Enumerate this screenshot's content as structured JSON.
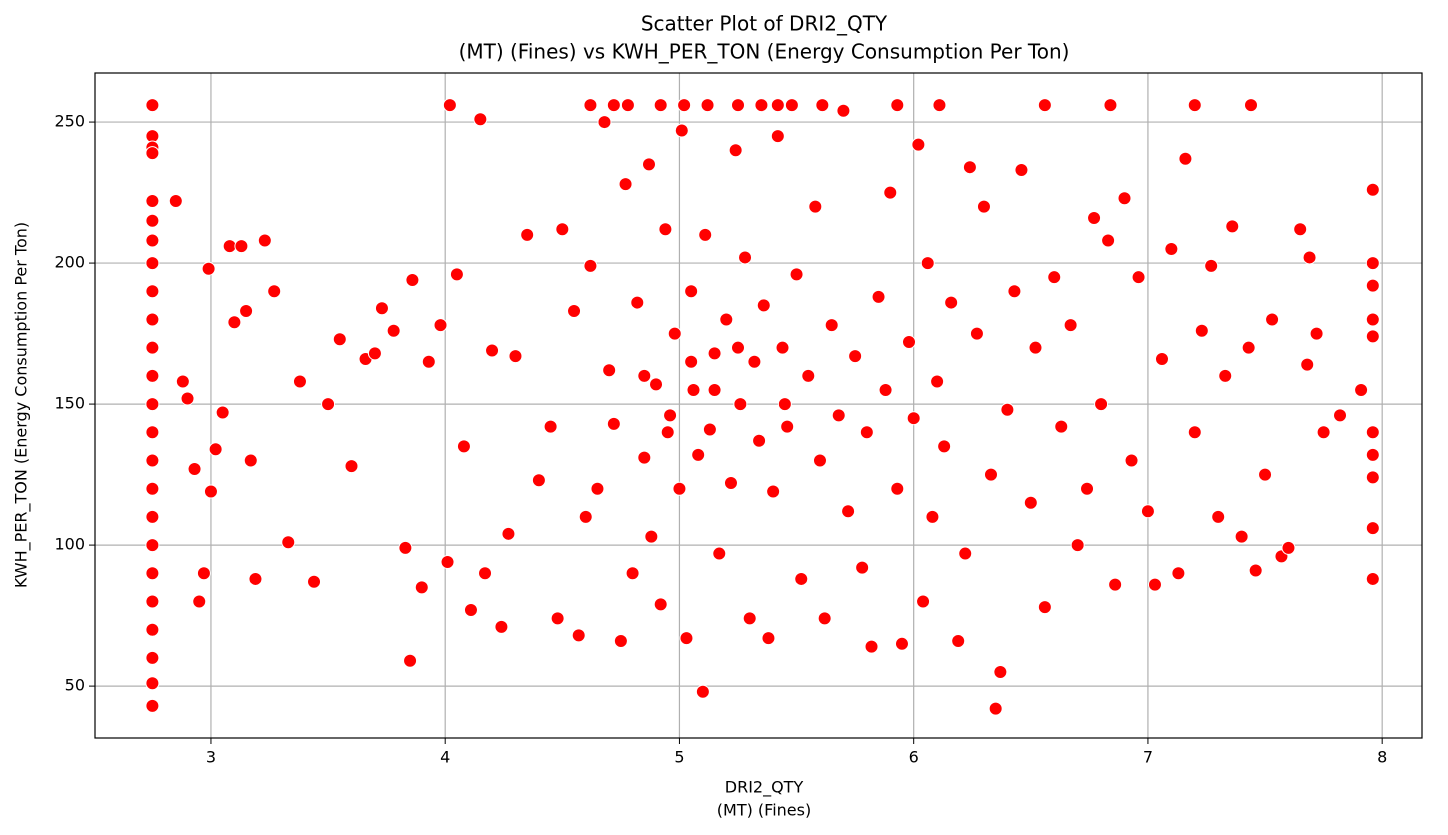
{
  "chart_data": {
    "type": "scatter",
    "title": [
      "Scatter Plot of DRI2_QTY",
      "(MT) (Fines) vs KWH_PER_TON (Energy Consumption Per Ton)"
    ],
    "xlabel": [
      "DRI2_QTY",
      "(MT) (Fines)"
    ],
    "ylabel": "KWH_PER_TON (Energy Consumption Per Ton)",
    "color": "#ff0000",
    "grid": true,
    "xlim": [
      2.505,
      8.17
    ],
    "ylim": [
      31.6,
      267.4
    ],
    "xticks": [
      3,
      4,
      5,
      6,
      7,
      8
    ],
    "yticks": [
      50,
      100,
      150,
      200,
      250
    ],
    "x": [
      2.75,
      2.75,
      2.75,
      2.75,
      2.75,
      2.75,
      2.75,
      2.75,
      2.75,
      2.75,
      2.75,
      2.75,
      2.75,
      2.75,
      2.75,
      2.75,
      2.75,
      2.75,
      2.75,
      2.75,
      2.75,
      2.75,
      2.75,
      2.75,
      7.96,
      7.96,
      7.96,
      7.96,
      7.96,
      7.96,
      7.96,
      7.96,
      7.96,
      7.96,
      4.02,
      4.62,
      4.72,
      4.78,
      4.92,
      5.02,
      5.12,
      5.25,
      5.35,
      5.42,
      5.48,
      5.61,
      5.93,
      6.11,
      6.56,
      6.84,
      7.2,
      7.44,
      2.85,
      2.88,
      2.9,
      2.93,
      2.95,
      2.97,
      2.99,
      3.0,
      3.02,
      3.05,
      3.08,
      3.1,
      3.13,
      3.15,
      3.17,
      3.19,
      3.23,
      3.27,
      3.33,
      3.38,
      3.44,
      3.5,
      3.55,
      3.6,
      3.66,
      3.7,
      3.73,
      3.78,
      3.83,
      3.85,
      3.86,
      3.9,
      3.93,
      3.98,
      4.01,
      4.05,
      4.08,
      4.11,
      4.15,
      4.17,
      4.2,
      4.24,
      4.27,
      4.3,
      4.35,
      4.4,
      4.45,
      4.48,
      4.5,
      4.55,
      4.57,
      4.6,
      4.62,
      4.65,
      4.68,
      4.7,
      4.72,
      4.75,
      4.77,
      4.8,
      4.82,
      4.85,
      4.87,
      4.88,
      4.9,
      4.92,
      4.94,
      4.96,
      4.98,
      5.0,
      5.01,
      5.03,
      5.05,
      5.06,
      5.08,
      5.1,
      5.11,
      5.13,
      5.15,
      5.17,
      5.2,
      5.22,
      5.24,
      5.26,
      5.28,
      5.3,
      5.32,
      5.34,
      5.36,
      5.38,
      5.4,
      5.42,
      5.44,
      5.46,
      5.5,
      5.52,
      5.55,
      5.58,
      5.6,
      5.62,
      5.65,
      5.68,
      5.7,
      5.72,
      5.75,
      5.78,
      5.8,
      5.82,
      5.85,
      5.88,
      5.9,
      5.93,
      5.95,
      5.98,
      6.0,
      6.02,
      6.04,
      6.06,
      6.08,
      6.1,
      6.13,
      6.16,
      6.19,
      6.22,
      6.24,
      6.27,
      6.3,
      6.33,
      6.35,
      6.37,
      6.4,
      6.43,
      6.46,
      6.5,
      6.52,
      6.56,
      6.6,
      6.63,
      6.67,
      6.7,
      6.74,
      6.77,
      6.8,
      6.83,
      6.86,
      6.9,
      6.93,
      6.96,
      7.0,
      7.03,
      7.06,
      7.1,
      7.13,
      7.16,
      7.2,
      7.23,
      7.27,
      7.3,
      7.33,
      7.36,
      7.4,
      7.43,
      7.46,
      7.5,
      7.53,
      7.57,
      7.6,
      7.65,
      7.68,
      7.69,
      7.72,
      7.75,
      7.82,
      7.91,
      5.05,
      4.95,
      5.15,
      5.25,
      4.85,
      5.45
    ],
    "values": [
      256,
      245,
      241,
      239,
      222,
      215,
      208,
      200,
      190,
      180,
      170,
      160,
      150,
      140,
      130,
      120,
      110,
      100,
      90,
      80,
      70,
      60,
      51,
      43,
      226,
      200,
      192,
      180,
      174,
      140,
      132,
      124,
      106,
      88,
      256,
      256,
      256,
      256,
      256,
      256,
      256,
      256,
      256,
      256,
      256,
      256,
      256,
      256,
      256,
      256,
      256,
      256,
      222,
      158,
      152,
      127,
      80,
      90,
      198,
      119,
      134,
      147,
      206,
      179,
      206,
      183,
      130,
      88,
      208,
      190,
      101,
      158,
      87,
      150,
      173,
      128,
      166,
      168,
      184,
      176,
      99,
      59,
      194,
      85,
      165,
      178,
      94,
      196,
      135,
      77,
      251,
      90,
      169,
      71,
      104,
      167,
      210,
      123,
      142,
      74,
      212,
      183,
      68,
      110,
      199,
      120,
      250,
      162,
      143,
      66,
      228,
      90,
      186,
      131,
      235,
      103,
      157,
      79,
      212,
      146,
      175,
      120,
      247,
      67,
      190,
      155,
      132,
      48,
      210,
      141,
      168,
      97,
      180,
      122,
      240,
      150,
      202,
      74,
      165,
      137,
      185,
      67,
      119,
      245,
      170,
      142,
      196,
      88,
      160,
      220,
      130,
      74,
      178,
      146,
      254,
      112,
      167,
      92,
      140,
      64,
      188,
      155,
      225,
      120,
      65,
      172,
      145,
      242,
      80,
      200,
      110,
      158,
      135,
      186,
      66,
      97,
      234,
      175,
      220,
      125,
      42,
      55,
      148,
      190,
      233,
      115,
      170,
      78,
      195,
      142,
      178,
      100,
      120,
      216,
      150,
      208,
      86,
      223,
      130,
      195,
      112,
      86,
      166,
      205,
      90,
      237,
      140,
      176,
      199,
      110,
      160,
      213,
      103,
      170,
      91,
      125,
      180,
      96,
      99,
      212,
      164,
      202,
      175,
      140,
      146,
      155,
      165,
      140,
      155,
      170,
      160,
      150
    ]
  }
}
